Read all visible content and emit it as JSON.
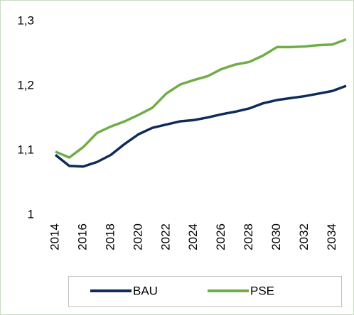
{
  "chart_data": {
    "type": "line",
    "x": [
      2014,
      2015,
      2016,
      2017,
      2018,
      2019,
      2020,
      2021,
      2022,
      2023,
      2024,
      2025,
      2026,
      2027,
      2028,
      2029,
      2030,
      2031,
      2032,
      2033,
      2034,
      2035
    ],
    "series": [
      {
        "name": "BAU",
        "color": "#0f2b5b",
        "values": [
          1.093,
          1.076,
          1.075,
          1.082,
          1.093,
          1.11,
          1.125,
          1.135,
          1.14,
          1.145,
          1.147,
          1.151,
          1.156,
          1.16,
          1.165,
          1.173,
          1.178,
          1.181,
          1.184,
          1.188,
          1.192,
          1.2
        ]
      },
      {
        "name": "PSE",
        "color": "#70ad47",
        "values": [
          1.098,
          1.089,
          1.105,
          1.127,
          1.137,
          1.145,
          1.155,
          1.166,
          1.188,
          1.202,
          1.209,
          1.215,
          1.226,
          1.233,
          1.237,
          1.247,
          1.26,
          1.26,
          1.261,
          1.263,
          1.264,
          1.272
        ]
      }
    ],
    "xlim": [
      2014,
      2035
    ],
    "xticks": [
      2014,
      2016,
      2018,
      2020,
      2022,
      2024,
      2026,
      2028,
      2030,
      2032,
      2034
    ],
    "ylim": [
      1,
      1.3
    ],
    "yticks": [
      1,
      {
        "value": 1.1,
        "label": "1,1"
      },
      {
        "value": 1.2,
        "label": "1,2"
      },
      {
        "value": 1.3,
        "label": "1,3"
      }
    ],
    "grid": false,
    "legend": "bottom"
  }
}
